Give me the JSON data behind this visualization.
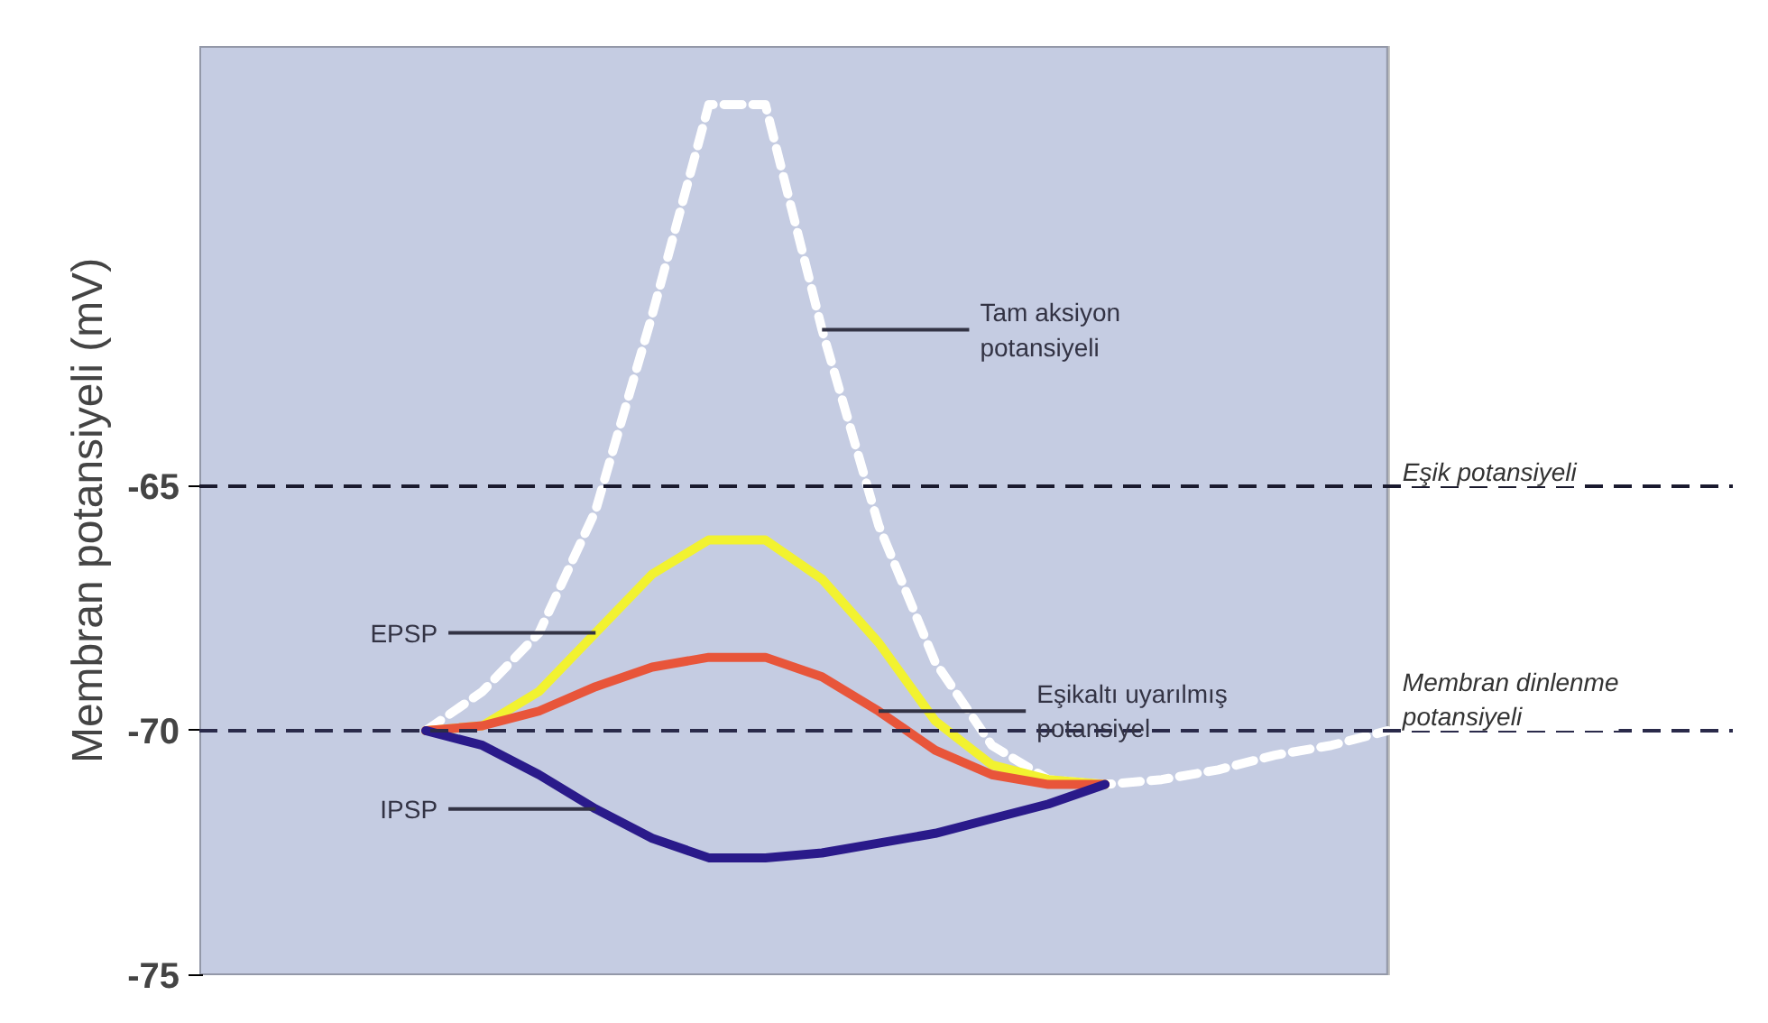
{
  "chart_data": {
    "type": "line",
    "ylabel": "Membran potansiyeli (mV)",
    "ylim": [
      -75,
      -56
    ],
    "yticks": [
      -65,
      -70,
      -75
    ],
    "tick_labels": "y",
    "grid": false,
    "categories": [
      null,
      null,
      null,
      null,
      null,
      null,
      null,
      null,
      null,
      null,
      null,
      null,
      null,
      null,
      null,
      null,
      null,
      null,
      null,
      null,
      null,
      null
    ],
    "series": [
      {
        "color": "#ffffff",
        "line_style": "dashed",
        "values": [
          null,
          null,
          null,
          null,
          -70,
          -69.2,
          -68,
          -65.5,
          -61.5,
          -57.2,
          -57.2,
          -61.8,
          -65.8,
          -68.6,
          -70.3,
          -71,
          -71.1,
          -71,
          -70.8,
          -70.5,
          -70.3,
          -70
        ]
      },
      {
        "color": "#f2f230",
        "values": [
          null,
          null,
          null,
          null,
          -70,
          -69.9,
          -69.2,
          -68,
          -66.8,
          -66.1,
          -66.1,
          -66.9,
          -68.2,
          -69.8,
          -70.7,
          -71,
          -71.1,
          null,
          null,
          null,
          null,
          null
        ]
      },
      {
        "color": "#e8553a",
        "values": [
          null,
          null,
          null,
          null,
          -70,
          -69.9,
          -69.6,
          -69.1,
          -68.7,
          -68.5,
          -68.5,
          -68.9,
          -69.6,
          -70.4,
          -70.9,
          -71.1,
          -71.1,
          null,
          null,
          null,
          null,
          null
        ]
      },
      {
        "color": "#2a1a8a",
        "values": [
          null,
          null,
          null,
          null,
          -70,
          -70.3,
          -70.9,
          -71.6,
          -72.2,
          -72.6,
          -72.6,
          -72.5,
          -72.3,
          -72.1,
          -71.8,
          -71.5,
          -71.1,
          null,
          null,
          null,
          null,
          null
        ]
      }
    ],
    "ref_lines": [
      {
        "axis": "y",
        "value": -65,
        "label": "Eşik potansiyeli",
        "color": "#1a1a2e",
        "line_style": "dashed"
      },
      {
        "axis": "y",
        "value": -70,
        "label": "Membran dinlenme potansiyeli",
        "color": "#2a2a4a",
        "line_style": "dashed"
      }
    ],
    "annotations": [
      "Tam aksiyon potansiyeli",
      "EPSP",
      "Eşikaltı uyarılmış potansiyel",
      "IPSP"
    ]
  }
}
